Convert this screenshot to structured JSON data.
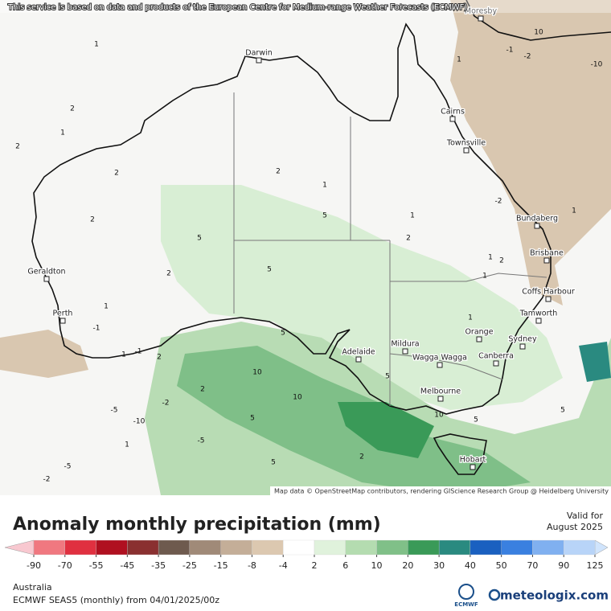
{
  "top_attribution": "This service is based on data and products of the European Centre for Medium-range Weather Forecasts (ECMWF)",
  "map_attribution": "Map data © OpenStreetMap contributors, rendering GIScience Research Group @ Heidelberg University",
  "cities": [
    "Moresby",
    "Darwin",
    "Cairns",
    "Townsville",
    "Bundaberg",
    "Brisbane",
    "Coffs Harbour",
    "Tamworth",
    "Geraldton",
    "Perth",
    "Orange",
    "Sydney",
    "Canberra",
    "Mildura",
    "Wagga Wagga",
    "Adelaide",
    "Melbourne",
    "Hobart"
  ],
  "contour_labels": [
    1,
    2,
    2,
    1,
    2,
    2,
    5,
    2,
    1,
    -1,
    2,
    1,
    5,
    5,
    1,
    2,
    1,
    2,
    1,
    1,
    5,
    10,
    10,
    5,
    10,
    5,
    2,
    -5,
    -10,
    -2,
    -5,
    5,
    5,
    2,
    1,
    -5,
    -2,
    -1,
    -2,
    -10,
    -2,
    1,
    5,
    1,
    1,
    2,
    -1,
    1,
    10
  ],
  "legend": {
    "title": "Anomaly monthly precipitation (mm)",
    "valid_label": "Valid for",
    "valid_date": "August 2025",
    "ticks": [
      -90,
      -70,
      -55,
      -45,
      -35,
      -25,
      -15,
      -8,
      -4,
      2,
      6,
      10,
      20,
      30,
      40,
      50,
      70,
      90,
      125
    ],
    "colors": [
      "#f07880",
      "#e03040",
      "#b01020",
      "#8a3030",
      "#6e5a4e",
      "#a08a78",
      "#c4ae98",
      "#dcc8b0",
      "#ffffff",
      "#e0f2dc",
      "#b4dcb0",
      "#80c088",
      "#3a9a58",
      "#2a8a80",
      "#1a60c0",
      "#3a80e0",
      "#80b0f0",
      "#b8d4f8"
    ],
    "under_color": "#f8c8d0",
    "over_color": "#d0e4fc"
  },
  "footer": {
    "region": "Australia",
    "model": "ECMWF SEAS5 (monthly) from 04/01/2025/00z",
    "ecmwf": "ECMWF",
    "brand": "meteologix.com"
  }
}
